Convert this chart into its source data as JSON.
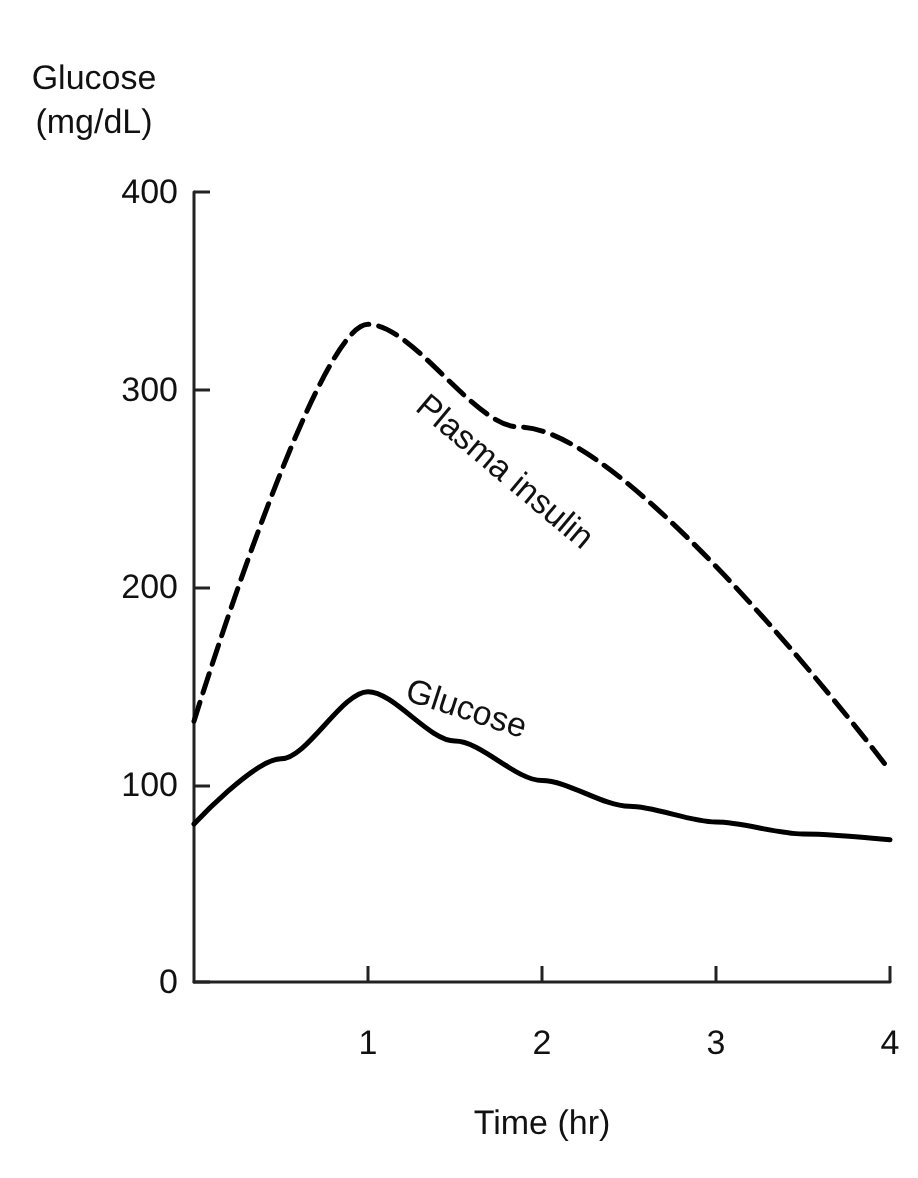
{
  "chart_data": {
    "type": "line",
    "xlabel": "Time (hr)",
    "ylabel": "Glucose\n(mg/dL)",
    "xlim": [
      0,
      4
    ],
    "xticks": [
      1,
      2,
      3,
      4
    ],
    "ylim": [
      0,
      400
    ],
    "yticks": [
      0,
      100,
      200,
      300,
      400
    ],
    "grid": false,
    "legend": false,
    "marker": "none",
    "series": [
      {
        "name": "Plasma insulin",
        "color": "#000000",
        "line_style": "dashed",
        "x": [
          0,
          1,
          1.87,
          4
        ],
        "values": [
          132,
          333,
          281,
          107
        ]
      },
      {
        "name": "Glucose",
        "color": "#000000",
        "line_style": "solid",
        "x": [
          0,
          0.5,
          1,
          1.5,
          2,
          2.5,
          3,
          3.5,
          4
        ],
        "values": [
          80,
          113,
          147,
          122,
          102,
          89,
          81,
          75,
          72
        ]
      }
    ]
  }
}
